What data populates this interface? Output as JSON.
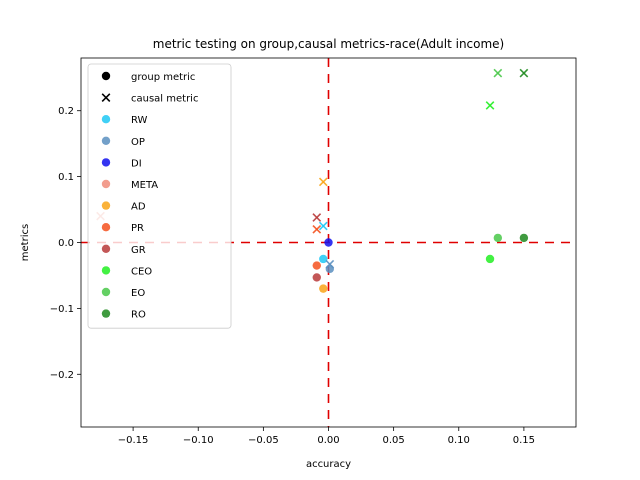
{
  "chart_data": {
    "type": "scatter",
    "title": "metric testing on group,causal metrics-race(Adult income)",
    "xlabel": "accuracy",
    "ylabel": "metrics",
    "xlim": [
      -0.19,
      0.19
    ],
    "ylim": [
      -0.28,
      0.28
    ],
    "xticks": [
      -0.15,
      -0.1,
      -0.05,
      0.0,
      0.05,
      0.1,
      0.15
    ],
    "xtick_labels": [
      "−0.15",
      "−0.10",
      "−0.05",
      "0.00",
      "0.05",
      "0.10",
      "0.15"
    ],
    "yticks": [
      -0.2,
      -0.1,
      0.0,
      0.1,
      0.2
    ],
    "ytick_labels": [
      "−0.2",
      "−0.1",
      "0.0",
      "0.1",
      "0.2"
    ],
    "grid": false,
    "legend_position": "top-left",
    "legend_markers": [
      {
        "label": "group metric",
        "marker": "circle",
        "color": "#000000"
      },
      {
        "label": "causal metric",
        "marker": "x",
        "color": "#000000"
      }
    ],
    "reference_lines": {
      "x": 0.0,
      "y": 0.0,
      "color": "#e00000",
      "style": "dashed"
    },
    "series": [
      {
        "name": "RW",
        "color": "#1ec8f5",
        "group": [
          [
            -0.004,
            -0.025
          ]
        ],
        "causal": [
          [
            -0.004,
            0.025
          ]
        ]
      },
      {
        "name": "OP",
        "color": "#5a8fc0",
        "group": [
          [
            0.001,
            -0.04
          ]
        ],
        "causal": [
          [
            0.001,
            -0.033
          ]
        ]
      },
      {
        "name": "DI",
        "color": "#1010ee",
        "group": [
          [
            0.0,
            0.0
          ]
        ],
        "causal": []
      },
      {
        "name": "META",
        "color": "#f08c7a",
        "group": [],
        "causal": [
          [
            -0.175,
            0.04
          ]
        ]
      },
      {
        "name": "AD",
        "color": "#f9a517",
        "group": [
          [
            -0.004,
            -0.07
          ]
        ],
        "causal": [
          [
            -0.004,
            0.092
          ]
        ]
      },
      {
        "name": "PR",
        "color": "#f4511e",
        "group": [
          [
            -0.009,
            -0.035
          ]
        ],
        "causal": [
          [
            -0.009,
            0.02
          ]
        ]
      },
      {
        "name": "GR",
        "color": "#b83a3a",
        "group": [
          [
            -0.009,
            -0.053
          ]
        ],
        "causal": [
          [
            -0.009,
            0.038
          ]
        ]
      },
      {
        "name": "CEO",
        "color": "#22ee22",
        "group": [
          [
            0.124,
            -0.025
          ]
        ],
        "causal": [
          [
            0.124,
            0.208
          ]
        ]
      },
      {
        "name": "EO",
        "color": "#49c849",
        "group": [
          [
            0.13,
            0.007
          ]
        ],
        "causal": [
          [
            0.13,
            0.257
          ]
        ]
      },
      {
        "name": "RO",
        "color": "#1e8a1e",
        "group": [
          [
            0.15,
            0.007
          ]
        ],
        "causal": [
          [
            0.15,
            0.257
          ]
        ]
      }
    ]
  }
}
